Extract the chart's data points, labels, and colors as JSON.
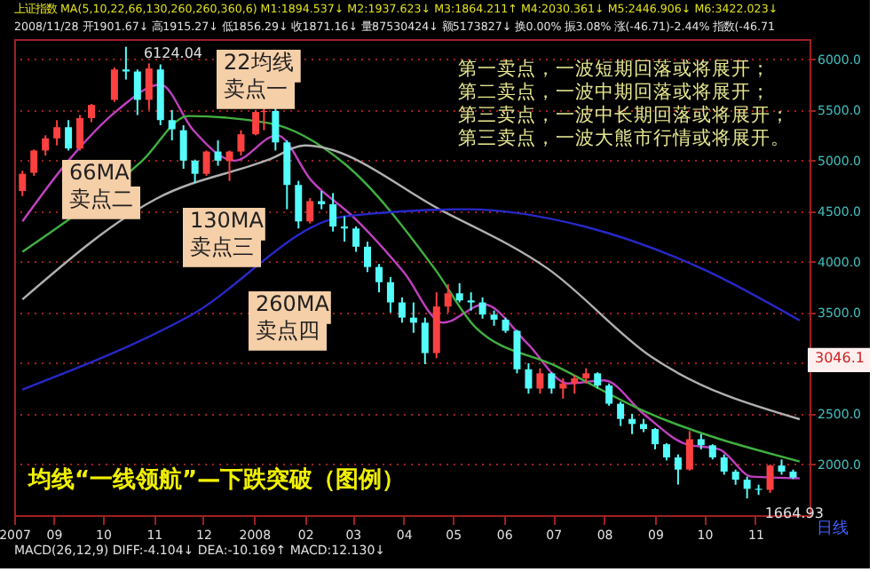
{
  "chart_data": {
    "type": "candlestick",
    "title": "均线“一线领航”—下跌突破（图例）",
    "annotations": [
      "上证指数 MA(5,10,22,66,130,260,260,360,6) M1:1894.537↓ M2:1937.623↓ M3:1864.211↑ M4:2030.361↓ M5:2446.906↓ M6:3422.023↓",
      "2008/11/28 开1901.67↓ 高1915.27↓ 低1856.29↓ 收1871.16↓ 量87530424↓ 额5173827↓ 换0.00% 振3.08% 涨(-46.71)-2.44% 指数(-46.71",
      "22均线",
      "卖点一",
      "66MA",
      "卖点二",
      "130MA",
      "卖点三",
      "260MA",
      "卖点四",
      "第一卖点，一波短期回落或将展开；",
      "第二卖点，一波中期回落或将展开；",
      "第三卖点，一波中长期回落或将展开；",
      "第三卖点，一波大熊市行情或将展开。",
      {
        "text": "6124.04",
        "x": "2007-10-15",
        "y": 6124.04
      },
      {
        "text": "1664.93",
        "x": "2008-10-27",
        "y": 1664.93
      },
      "3046.1",
      "日线",
      "MACD(26,12,9) DIFF:-4.104↓ DEA:-10.169↑ MACD:12.130↓"
    ],
    "x": [
      "2007-08-13",
      "2007-08-20",
      "2007-08-27",
      "2007-09-03",
      "2007-09-10",
      "2007-09-17",
      "2007-09-24",
      "2007-10-08",
      "2007-10-15",
      "2007-10-22",
      "2007-10-29",
      "2007-11-05",
      "2007-11-12",
      "2007-11-19",
      "2007-11-26",
      "2007-12-03",
      "2007-12-10",
      "2007-12-17",
      "2007-12-24",
      "2008-01-02",
      "2008-01-07",
      "2008-01-14",
      "2008-01-21",
      "2008-01-28",
      "2008-02-04",
      "2008-02-11",
      "2008-02-18",
      "2008-02-25",
      "2008-03-03",
      "2008-03-10",
      "2008-03-17",
      "2008-03-24",
      "2008-03-31",
      "2008-04-07",
      "2008-04-14",
      "2008-04-21",
      "2008-04-28",
      "2008-05-05",
      "2008-05-12",
      "2008-05-19",
      "2008-05-26",
      "2008-06-02",
      "2008-06-09",
      "2008-06-16",
      "2008-06-23",
      "2008-06-30",
      "2008-07-07",
      "2008-07-14",
      "2008-07-21",
      "2008-07-28",
      "2008-08-04",
      "2008-08-11",
      "2008-08-18",
      "2008-08-25",
      "2008-09-01",
      "2008-09-08",
      "2008-09-15",
      "2008-09-22",
      "2008-09-29",
      "2008-10-06",
      "2008-10-13",
      "2008-10-20",
      "2008-10-27",
      "2008-11-03",
      "2008-11-10",
      "2008-11-17",
      "2008-11-24"
    ],
    "ohlc": [
      [
        4700,
        4900,
        4650,
        4870
      ],
      [
        4880,
        5110,
        4850,
        5100
      ],
      [
        5100,
        5250,
        5050,
        5220
      ],
      [
        5220,
        5400,
        5150,
        5330
      ],
      [
        5330,
        5400,
        5100,
        5120
      ],
      [
        5120,
        5450,
        5100,
        5420
      ],
      [
        5420,
        5560,
        5380,
        5550
      ],
      [
        5600,
        5920,
        5580,
        5900
      ],
      [
        5900,
        6124.04,
        5800,
        5880
      ],
      [
        5880,
        5900,
        5450,
        5600
      ],
      [
        5600,
        5960,
        5500,
        5910
      ],
      [
        5900,
        5950,
        5350,
        5400
      ],
      [
        5400,
        5500,
        5200,
        5310
      ],
      [
        5300,
        5350,
        4920,
        5000
      ],
      [
        5000,
        5010,
        4780,
        4870
      ],
      [
        4870,
        5100,
        4850,
        5090
      ],
      [
        5090,
        5200,
        4950,
        5000
      ],
      [
        5000,
        5100,
        4800,
        5090
      ],
      [
        5090,
        5300,
        5050,
        5260
      ],
      [
        5260,
        5500,
        5250,
        5480
      ],
      [
        5480,
        5520,
        5300,
        5490
      ],
      [
        5490,
        5522,
        5100,
        5180
      ],
      [
        5180,
        5200,
        4520,
        4760
      ],
      [
        4760,
        4800,
        4330,
        4400
      ],
      [
        4400,
        4630,
        4380,
        4600
      ],
      [
        4600,
        4700,
        4520,
        4570
      ],
      [
        4570,
        4680,
        4300,
        4350
      ],
      [
        4350,
        4450,
        4200,
        4330
      ],
      [
        4330,
        4350,
        4100,
        4150
      ],
      [
        4150,
        4200,
        3900,
        3950
      ],
      [
        3950,
        3980,
        3700,
        3800
      ],
      [
        3800,
        3850,
        3500,
        3600
      ],
      [
        3600,
        3650,
        3400,
        3450
      ],
      [
        3450,
        3600,
        3300,
        3400
      ],
      [
        3400,
        3450,
        2990,
        3100
      ],
      [
        3100,
        3700,
        3050,
        3560
      ],
      [
        3560,
        3780,
        3500,
        3690
      ],
      [
        3690,
        3790,
        3600,
        3620
      ],
      [
        3620,
        3700,
        3520,
        3600
      ],
      [
        3600,
        3650,
        3440,
        3480
      ],
      [
        3480,
        3520,
        3370,
        3430
      ],
      [
        3430,
        3450,
        3300,
        3320
      ],
      [
        3320,
        3330,
        2900,
        2940
      ],
      [
        2940,
        3000,
        2700,
        2750
      ],
      [
        2750,
        2950,
        2700,
        2900
      ],
      [
        2900,
        2910,
        2700,
        2750
      ],
      [
        2750,
        2850,
        2650,
        2800
      ],
      [
        2800,
        2880,
        2700,
        2850
      ],
      [
        2850,
        2950,
        2800,
        2900
      ],
      [
        2900,
        2910,
        2750,
        2780
      ],
      [
        2780,
        2800,
        2580,
        2600
      ],
      [
        2600,
        2620,
        2380,
        2450
      ],
      [
        2450,
        2500,
        2300,
        2400
      ],
      [
        2400,
        2450,
        2320,
        2350
      ],
      [
        2350,
        2360,
        2150,
        2200
      ],
      [
        2200,
        2210,
        2040,
        2070
      ],
      [
        2070,
        2100,
        1802,
        1950
      ],
      [
        1950,
        2330,
        1940,
        2250
      ],
      [
        2250,
        2300,
        2150,
        2190
      ],
      [
        2190,
        2200,
        2050,
        2070
      ],
      [
        2070,
        2100,
        1900,
        1930
      ],
      [
        1930,
        1950,
        1800,
        1850
      ],
      [
        1850,
        1880,
        1664.93,
        1760
      ],
      [
        1760,
        1800,
        1700,
        1750
      ],
      [
        1750,
        2000,
        1720,
        1990
      ],
      [
        1990,
        2050,
        1900,
        1930
      ],
      [
        1930,
        1950,
        1856.29,
        1871.16
      ]
    ],
    "colors": [
      "#ff4040",
      "#ff4040",
      "#ff4040",
      "#ff4040",
      "#54fcfc",
      "#ff4040",
      "#ff4040",
      "#ff4040",
      "#54fcfc",
      "#54fcfc",
      "#ff4040",
      "#54fcfc",
      "#54fcfc",
      "#54fcfc",
      "#54fcfc",
      "#ff4040",
      "#54fcfc",
      "#ff4040",
      "#ff4040",
      "#ff4040",
      "#ff4040",
      "#54fcfc",
      "#54fcfc",
      "#54fcfc",
      "#ff4040",
      "#54fcfc",
      "#54fcfc",
      "#54fcfc",
      "#54fcfc",
      "#54fcfc",
      "#54fcfc",
      "#54fcfc",
      "#54fcfc",
      "#54fcfc",
      "#54fcfc",
      "#ff4040",
      "#ff4040",
      "#54fcfc",
      "#54fcfc",
      "#54fcfc",
      "#54fcfc",
      "#54fcfc",
      "#54fcfc",
      "#54fcfc",
      "#ff4040",
      "#54fcfc",
      "#ff4040",
      "#ff4040",
      "#ff4040",
      "#54fcfc",
      "#54fcfc",
      "#54fcfc",
      "#54fcfc",
      "#54fcfc",
      "#54fcfc",
      "#54fcfc",
      "#54fcfc",
      "#ff4040",
      "#54fcfc",
      "#54fcfc",
      "#54fcfc",
      "#54fcfc",
      "#54fcfc",
      "#54fcfc",
      "#ff4040",
      "#54fcfc",
      "#54fcfc"
    ],
    "series": [
      {
        "type": "line",
        "color": "#c040c0",
        "x": [
          "2007-08-13",
          "2007-09-10",
          "2007-10-10",
          "2007-11-05",
          "2007-11-25",
          "2007-12-20",
          "2008-01-15",
          "2008-02-05",
          "2008-03-01",
          "2008-04-01",
          "2008-04-25",
          "2008-05-20",
          "2008-06-15",
          "2008-07-10",
          "2008-08-01",
          "2008-08-25",
          "2008-09-20",
          "2008-10-10",
          "2008-10-30",
          "2008-11-28"
        ],
        "values": [
          4400,
          5000,
          5500,
          5750,
          5300,
          5000,
          5250,
          4800,
          4450,
          3900,
          3400,
          3580,
          3200,
          2800,
          2830,
          2500,
          2200,
          2150,
          1880,
          1864
        ]
      },
      {
        "type": "line",
        "color": "#40b040",
        "x": [
          "2007-08-13",
          "2007-10-25",
          "2007-11-22",
          "2008-01-10",
          "2008-02-25",
          "2008-04-20",
          "2008-05-15",
          "2008-07-03",
          "2008-08-25",
          "2008-11-28"
        ],
        "values": [
          4100,
          5000,
          5440,
          5370,
          4970,
          3930,
          3350,
          2970,
          2530,
          2030
        ]
      },
      {
        "type": "line",
        "color": "#b0b0b0",
        "x": [
          "2007-08-13",
          "2007-11-02",
          "2008-01-10",
          "2008-02-01",
          "2008-04-25",
          "2008-06-28",
          "2008-08-30",
          "2008-11-28"
        ],
        "values": [
          3630,
          4620,
          5010,
          5150,
          4500,
          3930,
          3060,
          2447
        ]
      },
      {
        "type": "line",
        "color": "#2828c8",
        "x": [
          "2007-08-13",
          "2007-11-22",
          "2008-02-25",
          "2008-05-10",
          "2008-07-20",
          "2008-09-30",
          "2008-11-28"
        ],
        "values": [
          2740,
          3460,
          4450,
          4520,
          4350,
          3930,
          3422
        ]
      }
    ],
    "xlim": [
      "2007-08-08",
      "2008-12-04"
    ],
    "xticks": [
      {
        "value": "2007-08-08",
        "label": "2007"
      },
      {
        "value": "2007-09-01",
        "label": "09"
      },
      {
        "value": "2007-10-01",
        "label": "10"
      },
      {
        "value": "2007-11-01",
        "label": "11"
      },
      {
        "value": "2007-12-01",
        "label": "12"
      },
      {
        "value": "2008-01-01",
        "label": "2008"
      },
      {
        "value": "2008-02-01",
        "label": "02"
      },
      {
        "value": "2008-03-01",
        "label": "03"
      },
      {
        "value": "2008-04-01",
        "label": "04"
      },
      {
        "value": "2008-05-01",
        "label": "05"
      },
      {
        "value": "2008-06-01",
        "label": "06"
      },
      {
        "value": "2008-07-01",
        "label": "07"
      },
      {
        "value": "2008-08-01",
        "label": "08"
      },
      {
        "value": "2008-09-01",
        "label": "09"
      },
      {
        "value": "2008-10-01",
        "label": "10"
      },
      {
        "value": "2008-11-01",
        "label": "11"
      }
    ],
    "ylim": [
      1500,
      6200
    ],
    "yticks": [
      {
        "value": 2000,
        "label": "2000.0"
      },
      {
        "value": 2500,
        "label": "2500.0"
      },
      {
        "value": 3000,
        "label": null
      },
      {
        "value": 3500,
        "label": "3500.0"
      },
      {
        "value": 4000,
        "label": "4000.0"
      },
      {
        "value": 4500,
        "label": "4500.0"
      },
      {
        "value": 5000,
        "label": "5000.0"
      },
      {
        "value": 5500,
        "label": "5500.0"
      },
      {
        "value": 6000,
        "label": "6000.0"
      }
    ],
    "grid": "y"
  }
}
